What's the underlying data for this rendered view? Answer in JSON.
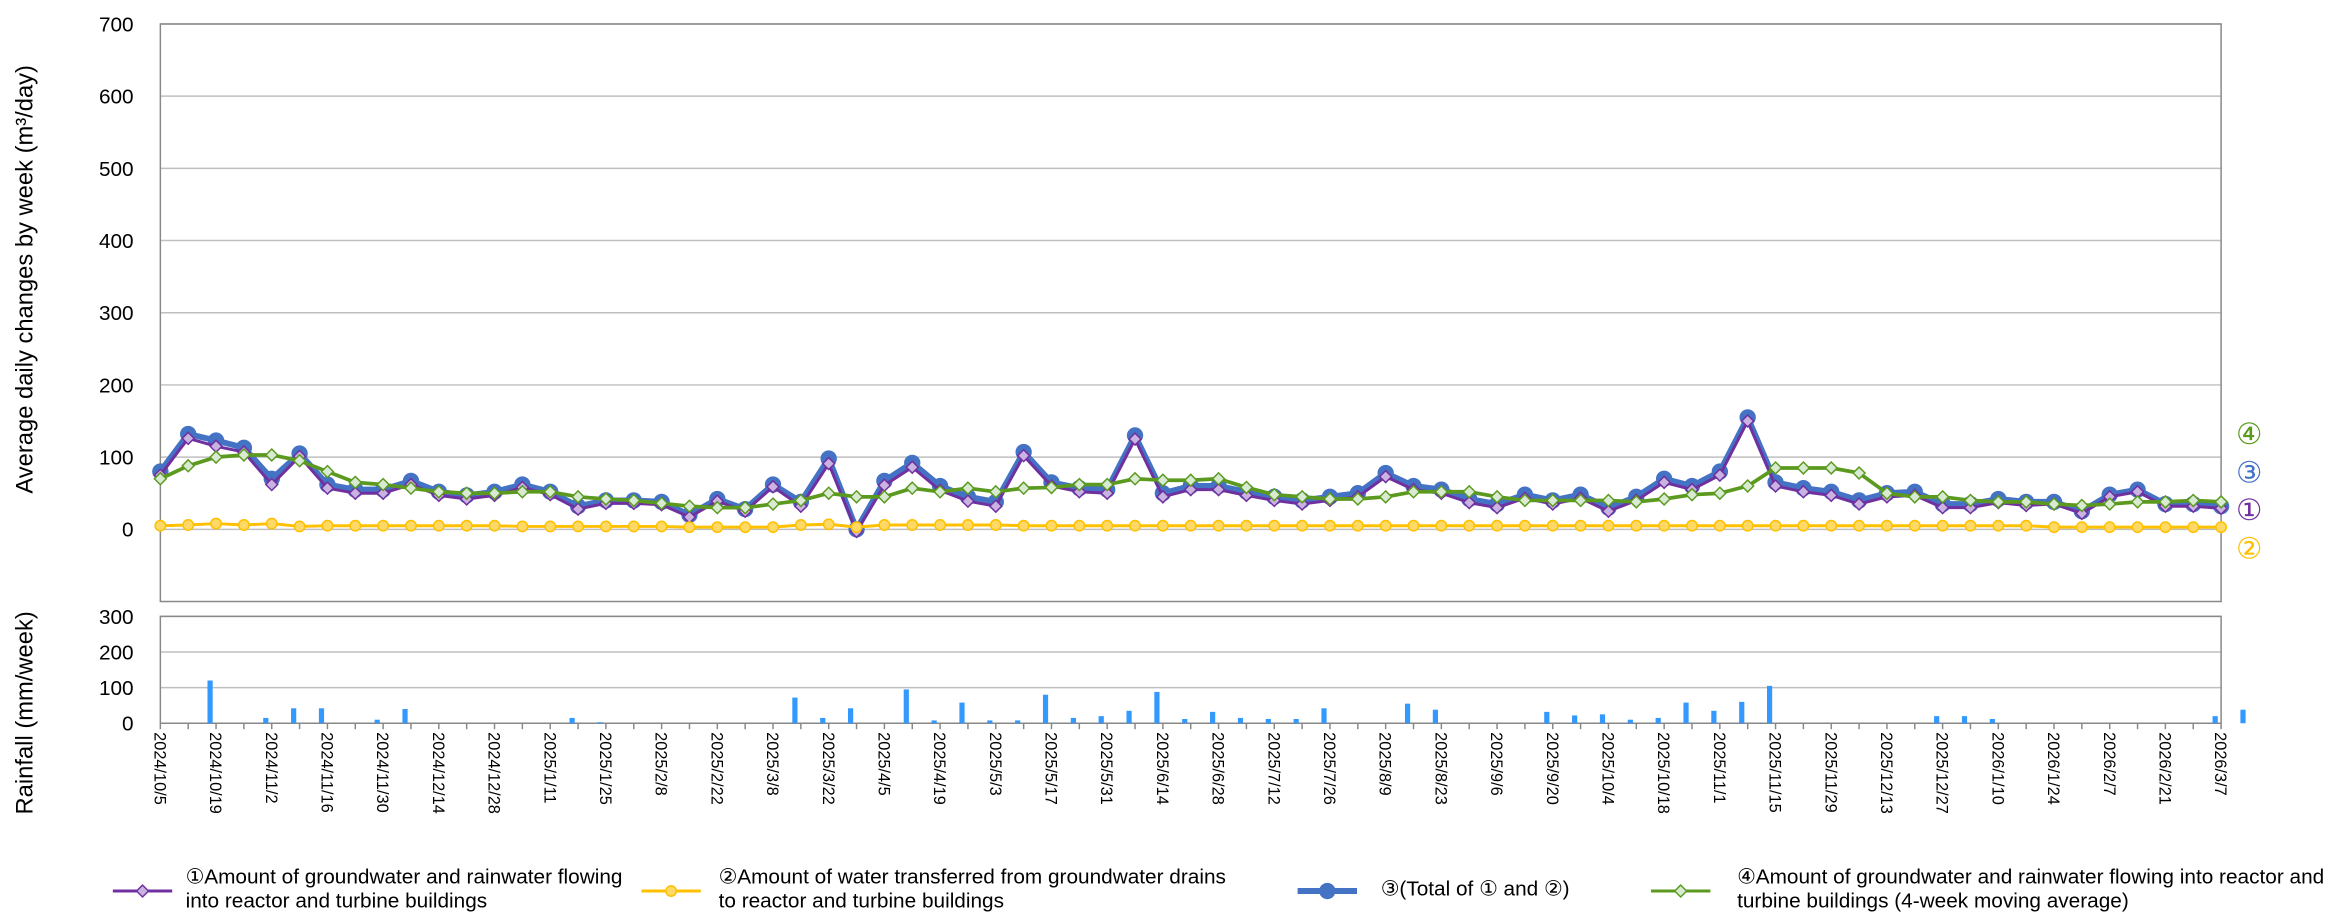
{
  "chart_data": [
    {
      "type": "line",
      "y_label": "Average daily changes by week (m³/day)",
      "categories": [
        "2024/10/5",
        null,
        "2024/10/19",
        null,
        "2024/11/2",
        null,
        "2024/11/16",
        null,
        "2024/11/30",
        null,
        "2024/12/14",
        null,
        "2024/12/28",
        null,
        "2025/1/11",
        null,
        "2025/1/25",
        null,
        "2025/2/8",
        null,
        "2025/2/22",
        null,
        "2025/3/8",
        null,
        "2025/3/22",
        null,
        "2025/4/5",
        null,
        "2025/4/19",
        null,
        "2025/5/3",
        null,
        "2025/5/17",
        null,
        "2025/5/31",
        null,
        "2025/6/14",
        null,
        "2025/6/28",
        null,
        "2025/7/12",
        null,
        "2025/7/26",
        null,
        "2025/8/9",
        null,
        "2025/8/23",
        null,
        "2025/9/6",
        null,
        "2025/9/20",
        null,
        "2025/10/4",
        null,
        "2025/10/18",
        null,
        "2025/11/1",
        null,
        "2025/11/15",
        null,
        "2025/11/29",
        null,
        "2025/12/13",
        null,
        "2025/12/27",
        null,
        "2026/1/10",
        null,
        "2026/1/24",
        null,
        "2026/2/7",
        null,
        "2026/2/21",
        null,
        "2026/3/7"
      ],
      "series": [
        {
          "name": "③(Total of ① and ②)",
          "color": "#4472c4",
          "values": [
            80,
            132,
            123,
            113,
            70,
            105,
            62,
            55,
            55,
            67,
            52,
            47,
            52,
            62,
            52,
            32,
            40,
            40,
            38,
            20,
            42,
            28,
            62,
            38,
            98,
            0,
            67,
            92,
            60,
            45,
            38,
            107,
            65,
            57,
            55,
            130,
            50,
            60,
            60,
            52,
            45,
            40,
            45,
            50,
            78,
            60,
            55,
            42,
            35,
            48,
            40,
            48,
            30,
            45,
            70,
            60,
            80,
            155,
            65,
            57,
            52,
            40,
            50,
            52,
            35,
            35,
            42,
            38,
            38,
            25,
            48,
            55,
            35,
            35,
            32
          ]
        },
        {
          "name": "①Amount of groundwater and rainwater flowing into reactor and turbine buildings",
          "color": "#7030a0",
          "values": [
            75,
            126,
            115,
            107,
            62,
            101,
            57,
            50,
            50,
            62,
            47,
            42,
            47,
            58,
            48,
            28,
            36,
            36,
            34,
            17,
            39,
            25,
            59,
            32,
            91,
            -3,
            61,
            86,
            54,
            39,
            32,
            102,
            60,
            52,
            50,
            125,
            45,
            55,
            55,
            47,
            40,
            35,
            40,
            45,
            73,
            55,
            50,
            37,
            30,
            43,
            35,
            43,
            25,
            40,
            65,
            55,
            75,
            150,
            60,
            52,
            47,
            35,
            45,
            47,
            30,
            30,
            37,
            33,
            35,
            22,
            45,
            52,
            32,
            32,
            29
          ]
        },
        {
          "name": "②Amount of water transferred from groundwater drains to reactor and turbine buildings",
          "color": "#ffc000",
          "values": [
            5,
            6,
            8,
            6,
            8,
            4,
            5,
            5,
            5,
            5,
            5,
            5,
            5,
            4,
            4,
            4,
            4,
            4,
            4,
            3,
            3,
            3,
            3,
            6,
            7,
            3,
            6,
            6,
            6,
            6,
            6,
            5,
            5,
            5,
            5,
            5,
            5,
            5,
            5,
            5,
            5,
            5,
            5,
            5,
            5,
            5,
            5,
            5,
            5,
            5,
            5,
            5,
            5,
            5,
            5,
            5,
            5,
            5,
            5,
            5,
            5,
            5,
            5,
            5,
            5,
            5,
            5,
            5,
            3,
            3,
            3,
            3,
            3,
            3,
            3
          ]
        },
        {
          "name": "④Amount of groundwater and rainwater flowing into reactor and turbine buildings (4-week moving average)",
          "color": "#5b9a1e",
          "values": [
            70,
            88,
            100,
            103,
            103,
            95,
            80,
            65,
            62,
            57,
            52,
            50,
            50,
            52,
            52,
            45,
            42,
            40,
            36,
            32,
            30,
            30,
            35,
            40,
            50,
            45,
            45,
            57,
            52,
            57,
            52,
            57,
            58,
            62,
            62,
            70,
            68,
            68,
            70,
            58,
            48,
            45,
            42,
            42,
            45,
            52,
            52,
            52,
            45,
            40,
            40,
            40,
            40,
            38,
            42,
            48,
            50,
            60,
            85,
            85,
            85,
            78,
            50,
            45,
            45,
            40,
            38,
            38,
            35,
            33,
            35,
            38,
            38,
            40,
            38
          ]
        }
      ],
      "series_markers": [
        "④",
        "③",
        "①",
        "②"
      ],
      "ylim": [
        -100,
        700
      ],
      "yticks": [
        0,
        100,
        200,
        300,
        400,
        500,
        600,
        700
      ],
      "grid": true
    },
    {
      "type": "bar",
      "y_label": "Rainfall (mm/week)",
      "color": "#3399ff",
      "values": [
        0,
        120,
        0,
        15,
        42,
        42,
        0,
        10,
        40,
        0,
        0,
        0,
        0,
        0,
        15,
        3,
        0,
        0,
        0,
        0,
        0,
        0,
        72,
        15,
        42,
        0,
        95,
        8,
        58,
        8,
        8,
        80,
        15,
        20,
        35,
        88,
        12,
        32,
        15,
        12,
        12,
        42,
        0,
        0,
        55,
        38,
        0,
        0,
        0,
        32,
        22,
        25,
        10,
        15,
        58,
        35,
        60,
        105,
        0,
        0,
        0,
        0,
        0,
        20,
        20,
        12,
        0,
        0,
        0,
        0,
        0,
        0,
        0,
        20,
        38
      ],
      "ylim": [
        0,
        300
      ],
      "yticks": [
        0,
        100,
        200,
        300
      ],
      "grid": true
    }
  ]
}
